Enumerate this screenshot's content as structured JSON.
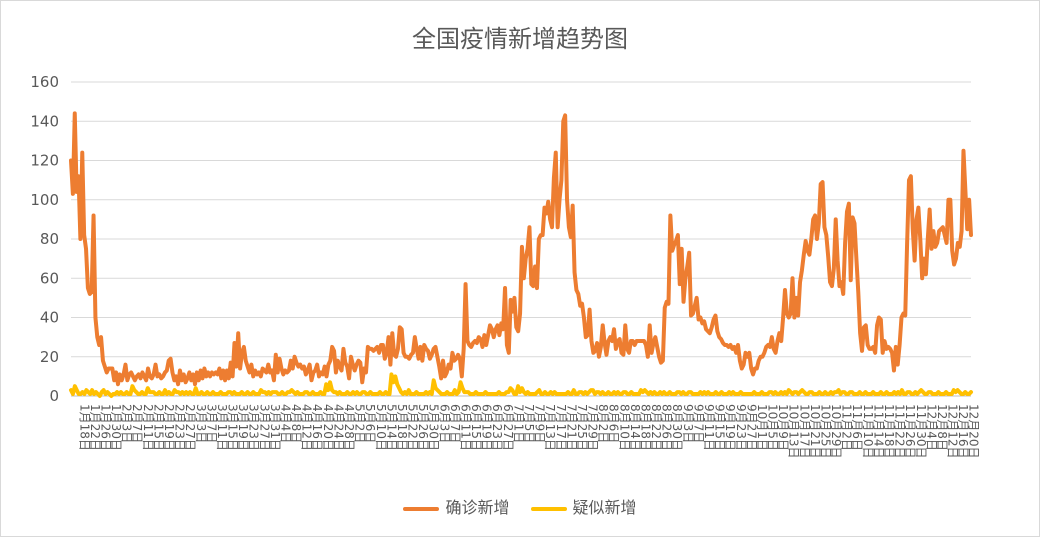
{
  "colors": {
    "confirmed": "#ED7D31",
    "suspected": "#FFC000",
    "grid": "#d9d9d9"
  },
  "chart_data": {
    "type": "line",
    "title": "全国疫情新增趋势图",
    "ylim": [
      0,
      160
    ],
    "yticks": [
      0,
      20,
      40,
      60,
      80,
      100,
      120,
      140,
      160
    ],
    "grid": true,
    "legend_position": "bottom",
    "x_labels": [
      "1月18日",
      "1月22日",
      "1月26日",
      "1月30日",
      "2月3日",
      "2月7日",
      "2月11日",
      "2月15日",
      "2月19日",
      "2月23日",
      "2月27日",
      "3月3日",
      "3月7日",
      "3月11日",
      "3月15日",
      "3月19日",
      "3月23日",
      "3月27日",
      "3月31日",
      "4月4日",
      "4月8日",
      "4月12日",
      "4月16日",
      "4月20日",
      "4月24日",
      "4月28日",
      "5月2日",
      "5月6日",
      "5月10日",
      "5月14日",
      "5月18日",
      "5月22日",
      "5月26日",
      "5月30日",
      "6月3日",
      "6月7日",
      "6月11日",
      "6月15日",
      "6月19日",
      "6月23日",
      "6月27日",
      "7月1日",
      "7月5日",
      "7月9日",
      "7月13日",
      "7月17日",
      "7月21日",
      "7月25日",
      "7月29日",
      "8月2日",
      "8月6日",
      "8月10日",
      "8月14日",
      "8月18日",
      "8月22日",
      "8月26日",
      "8月30日",
      "9月3日",
      "9月7日",
      "9月11日",
      "9月15日",
      "9月19日",
      "9月23日",
      "9月27日",
      "10月1日",
      "10月5日",
      "10月9日",
      "10月13日",
      "10月17日",
      "10月21日",
      "10月25日",
      "10月29日",
      "11月2日",
      "11月6日",
      "11月10日",
      "11月14日",
      "11月18日",
      "11月22日",
      "11月26日",
      "11月30日",
      "12月4日",
      "12月8日",
      "12月12日",
      "12月16日",
      "12月20日"
    ],
    "series": [
      {
        "name": "确诊新增",
        "values": [
          120,
          103,
          144,
          104,
          112,
          80,
          124,
          82,
          75,
          55,
          52,
          53,
          92,
          40,
          30,
          26,
          30,
          18,
          15,
          12,
          14,
          14,
          14,
          8,
          12,
          6,
          11,
          8,
          11,
          16,
          8,
          11,
          12,
          10,
          8,
          10,
          11,
          9,
          12,
          10,
          8,
          14,
          10,
          9,
          11,
          16,
          10,
          11,
          9,
          10,
          12,
          13,
          18,
          19,
          12,
          8,
          10,
          6,
          13,
          8,
          11,
          7,
          9,
          12,
          8,
          11,
          6,
          12,
          8,
          13,
          9,
          14,
          10,
          12,
          10,
          12,
          11,
          12,
          11,
          14,
          9,
          13,
          8,
          13,
          9,
          17,
          10,
          27,
          15,
          32,
          14,
          22,
          25,
          18,
          15,
          12,
          16,
          10,
          13,
          11,
          12,
          10,
          14,
          13,
          12,
          16,
          12,
          13,
          8,
          21,
          12,
          19,
          14,
          11,
          13,
          12,
          13,
          18,
          14,
          20,
          17,
          15,
          16,
          14,
          15,
          11,
          13,
          16,
          8,
          12,
          13,
          16,
          10,
          12,
          11,
          15,
          10,
          16,
          18,
          25,
          23,
          12,
          18,
          15,
          13,
          24,
          17,
          15,
          9,
          20,
          16,
          13,
          16,
          18,
          17,
          7,
          14,
          12,
          25,
          24,
          24,
          23,
          24,
          25,
          22,
          26,
          26,
          19,
          22,
          30,
          16,
          32,
          21,
          20,
          24,
          35,
          34,
          22,
          20,
          20,
          19,
          21,
          22,
          30,
          24,
          19,
          25,
          18,
          26,
          24,
          23,
          19,
          21,
          24,
          25,
          20,
          15,
          9,
          18,
          10,
          12,
          16,
          14,
          22,
          18,
          19,
          21,
          19,
          10,
          24,
          57,
          28,
          26,
          25,
          27,
          28,
          27,
          30,
          29,
          25,
          31,
          26,
          31,
          36,
          34,
          30,
          34,
          36,
          31,
          37,
          34,
          55,
          26,
          22,
          49,
          43,
          50,
          35,
          33,
          42,
          76,
          60,
          70,
          75,
          86,
          57,
          56,
          66,
          55,
          80,
          82,
          82,
          96,
          93,
          99,
          90,
          86,
          111,
          124,
          86,
          100,
          110,
          140,
          143,
          100,
          86,
          81,
          97,
          63,
          54,
          52,
          46,
          47,
          40,
          30,
          31,
          44,
          28,
          22,
          23,
          27,
          20,
          25,
          36,
          27,
          21,
          28,
          30,
          28,
          34,
          24,
          28,
          29,
          22,
          21,
          36,
          24,
          22,
          28,
          28,
          26,
          28,
          28,
          28,
          28,
          28,
          26,
          20,
          36,
          22,
          27,
          30,
          25,
          20,
          17,
          18,
          45,
          48,
          47,
          92,
          74,
          77,
          79,
          82,
          57,
          75,
          48,
          60,
          66,
          73,
          41,
          42,
          46,
          50,
          39,
          40,
          37,
          38,
          34,
          33,
          32,
          35,
          39,
          41,
          33,
          30,
          29,
          27,
          26,
          26,
          25,
          26,
          24,
          25,
          22,
          26,
          18,
          14,
          16,
          22,
          20,
          22,
          14,
          11,
          14,
          14,
          18,
          20,
          20,
          22,
          25,
          26,
          25,
          30,
          24,
          22,
          28,
          32,
          28,
          40,
          54,
          42,
          40,
          42,
          60,
          40,
          50,
          41,
          58,
          64,
          72,
          79,
          74,
          72,
          80,
          90,
          92,
          80,
          88,
          108,
          109,
          86,
          82,
          71,
          58,
          56,
          65,
          90,
          69,
          56,
          58,
          52,
          78,
          94,
          98,
          59,
          91,
          88,
          70,
          53,
          32,
          23,
          35,
          36,
          26,
          24,
          24,
          25,
          22,
          36,
          40,
          39,
          22,
          28,
          24,
          25,
          24,
          22,
          13,
          25,
          16,
          26,
          40,
          42,
          41,
          78,
          110,
          112,
          85,
          69,
          90,
          96,
          80,
          60,
          70,
          62,
          80,
          95,
          75,
          84,
          76,
          78,
          84,
          85,
          86,
          82,
          78,
          100,
          100,
          74,
          67,
          70,
          78,
          76,
          84,
          125,
          105,
          85,
          100,
          82
        ]
      },
      {
        "name": "疑似新增",
        "values": [
          3,
          1,
          5,
          3,
          1,
          1,
          2,
          1,
          3,
          2,
          1,
          3,
          1,
          2,
          1,
          0,
          2,
          3,
          1,
          2,
          1,
          0,
          1,
          1,
          2,
          1,
          2,
          1,
          1,
          2,
          1,
          1,
          5,
          3,
          2,
          1,
          1,
          2,
          1,
          1,
          4,
          2,
          2,
          2,
          1,
          1,
          2,
          1,
          1,
          3,
          1,
          2,
          1,
          1,
          3,
          2,
          2,
          1,
          2,
          1,
          2,
          1,
          2,
          1,
          1,
          4,
          1,
          1,
          2,
          1,
          1,
          2,
          1,
          1,
          2,
          1,
          1,
          1,
          2,
          1,
          1,
          1,
          2,
          2,
          1,
          2,
          1,
          1,
          1,
          2,
          1,
          1,
          2,
          1,
          1,
          2,
          1,
          1,
          1,
          3,
          2,
          2,
          1,
          2,
          1,
          2,
          2,
          2,
          1,
          1,
          2,
          1,
          1,
          2,
          2,
          3,
          2,
          1,
          2,
          1,
          1,
          1,
          2,
          2,
          1,
          1,
          2,
          1,
          1,
          1,
          2,
          1,
          1,
          6,
          3,
          7,
          3,
          2,
          2,
          1,
          2,
          1,
          1,
          1,
          2,
          1,
          1,
          2,
          1,
          2,
          1,
          1,
          2,
          2,
          1,
          1,
          2,
          1,
          1,
          1,
          1,
          2,
          1,
          1,
          2,
          1,
          1,
          11,
          7,
          10,
          6,
          4,
          2,
          1,
          2,
          1,
          3,
          1,
          1,
          1,
          2,
          1,
          1,
          1,
          1,
          2,
          1,
          2,
          1,
          8,
          4,
          3,
          2,
          1,
          1,
          1,
          2,
          1,
          1,
          1,
          3,
          1,
          2,
          7,
          4,
          2,
          2,
          2,
          1,
          1,
          1,
          2,
          1,
          1,
          1,
          1,
          2,
          1,
          1,
          1,
          1,
          1,
          1,
          2,
          1,
          1,
          1,
          2,
          2,
          4,
          3,
          1,
          1,
          5,
          2,
          4,
          2,
          1,
          2,
          1,
          1,
          1,
          1,
          2,
          3,
          1,
          1,
          2,
          1,
          1,
          2,
          1,
          2,
          1,
          1,
          1,
          1,
          1,
          1,
          2,
          1,
          1,
          3,
          1,
          1,
          2,
          2,
          1,
          2,
          1,
          2,
          3,
          3,
          1,
          2,
          2,
          1,
          2,
          1,
          1,
          2,
          1,
          1,
          2,
          1,
          2,
          1,
          1,
          2,
          2,
          1,
          1,
          2,
          1,
          1,
          1,
          1,
          3,
          2,
          3,
          2,
          1,
          2,
          1,
          2,
          1,
          1,
          2,
          1,
          2,
          1,
          1,
          2,
          1,
          1,
          1,
          2,
          2,
          1,
          2,
          1,
          1,
          2,
          2,
          1,
          1,
          1,
          1,
          2,
          1,
          2,
          1,
          2,
          1,
          1,
          1,
          2,
          1,
          1,
          2,
          1,
          1,
          1,
          2,
          1,
          2,
          1,
          1,
          1,
          2,
          1,
          1,
          1,
          1,
          1,
          1,
          2,
          1,
          1,
          1,
          2,
          1,
          1,
          1,
          2,
          2,
          1,
          2,
          1,
          1,
          2,
          1,
          2,
          1,
          3,
          2,
          1,
          2,
          2,
          1,
          2,
          3,
          2,
          1,
          1,
          2,
          2,
          1,
          1,
          1,
          2,
          1,
          1,
          2,
          1,
          1,
          2,
          1,
          2,
          2,
          3,
          1,
          2,
          2,
          1,
          1,
          2,
          2,
          1,
          1,
          1,
          2,
          1,
          1,
          2,
          1,
          1,
          1,
          2,
          1,
          1,
          1,
          2,
          1,
          1,
          2,
          1,
          1,
          1,
          2,
          1,
          2,
          1,
          3,
          1,
          1,
          2,
          2,
          1,
          1,
          2,
          1,
          2,
          3,
          2,
          1,
          1,
          2,
          2,
          1,
          1,
          1,
          2,
          1,
          1,
          1,
          2,
          1,
          1,
          1,
          3,
          2,
          3,
          2,
          1,
          1,
          2,
          1,
          1,
          2
        ]
      }
    ]
  }
}
